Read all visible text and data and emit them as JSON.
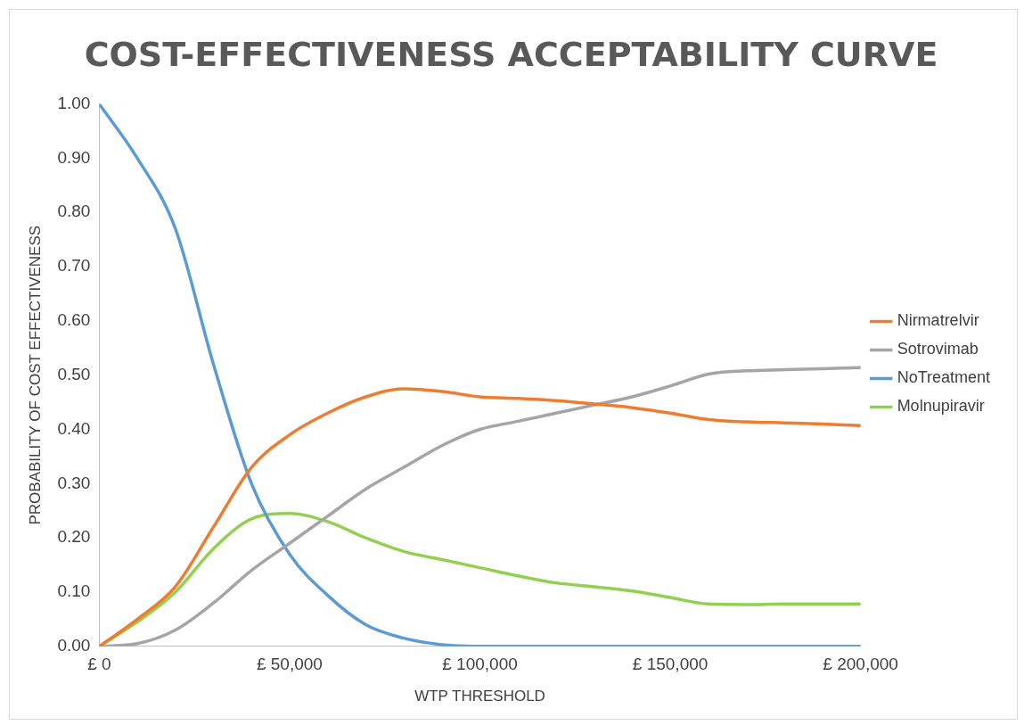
{
  "chart_data": {
    "type": "line",
    "title": "COST-EFFECTIVENESS ACCEPTABILITY CURVE",
    "xlabel": "WTP THRESHOLD",
    "ylabel": "PROBABILITY OF COST EFFECTIVENESS",
    "x": [
      0,
      10000,
      20000,
      30000,
      40000,
      50000,
      60000,
      70000,
      80000,
      90000,
      100000,
      110000,
      120000,
      130000,
      140000,
      150000,
      160000,
      170000,
      180000,
      190000,
      200000
    ],
    "xlim": [
      0,
      200000
    ],
    "xticks": [
      {
        "value": 0,
        "label": "£ 0"
      },
      {
        "value": 50000,
        "label": "£ 50,000"
      },
      {
        "value": 100000,
        "label": "£ 100,000"
      },
      {
        "value": 150000,
        "label": "£ 150,000"
      },
      {
        "value": 200000,
        "label": "£ 200,000"
      }
    ],
    "ylim": [
      0,
      1
    ],
    "yticks": [
      {
        "value": 0,
        "label": "0.00"
      },
      {
        "value": 0.1,
        "label": "0.10"
      },
      {
        "value": 0.2,
        "label": "0.20"
      },
      {
        "value": 0.3,
        "label": "0.30"
      },
      {
        "value": 0.4,
        "label": "0.40"
      },
      {
        "value": 0.5,
        "label": "0.50"
      },
      {
        "value": 0.6,
        "label": "0.60"
      },
      {
        "value": 0.7,
        "label": "0.70"
      },
      {
        "value": 0.8,
        "label": "0.80"
      },
      {
        "value": 0.9,
        "label": "0.90"
      },
      {
        "value": 1,
        "label": "1.00"
      }
    ],
    "series": [
      {
        "name": "Nirmatrelvir",
        "color": "#ed7d31",
        "values": [
          0,
          0.05,
          0.11,
          0.22,
          0.33,
          0.39,
          0.43,
          0.46,
          0.475,
          0.47,
          0.46,
          0.457,
          0.453,
          0.447,
          0.44,
          0.43,
          0.418,
          0.414,
          0.412,
          0.41,
          0.407
        ]
      },
      {
        "name": "Sotrovimab",
        "color": "#a5a5a5",
        "values": [
          0,
          0.005,
          0.03,
          0.08,
          0.14,
          0.19,
          0.24,
          0.29,
          0.33,
          0.37,
          0.4,
          0.415,
          0.43,
          0.445,
          0.46,
          0.48,
          0.502,
          0.508,
          0.51,
          0.512,
          0.514
        ]
      },
      {
        "name": "NoTreatment",
        "color": "#5b9bd5",
        "values": [
          1,
          0.9,
          0.77,
          0.52,
          0.3,
          0.17,
          0.094,
          0.04,
          0.015,
          0.003,
          0,
          0,
          0,
          0,
          0,
          0,
          0,
          0,
          0,
          0,
          0
        ]
      },
      {
        "name": "Molnupiravir",
        "color": "#92d050",
        "values": [
          0,
          0.045,
          0.1,
          0.18,
          0.235,
          0.245,
          0.23,
          0.2,
          0.175,
          0.16,
          0.145,
          0.13,
          0.117,
          0.11,
          0.102,
          0.09,
          0.078,
          0.077,
          0.078,
          0.078,
          0.078
        ]
      }
    ],
    "legend": "right",
    "grid": false,
    "marker": "none",
    "line_style": "solid"
  }
}
